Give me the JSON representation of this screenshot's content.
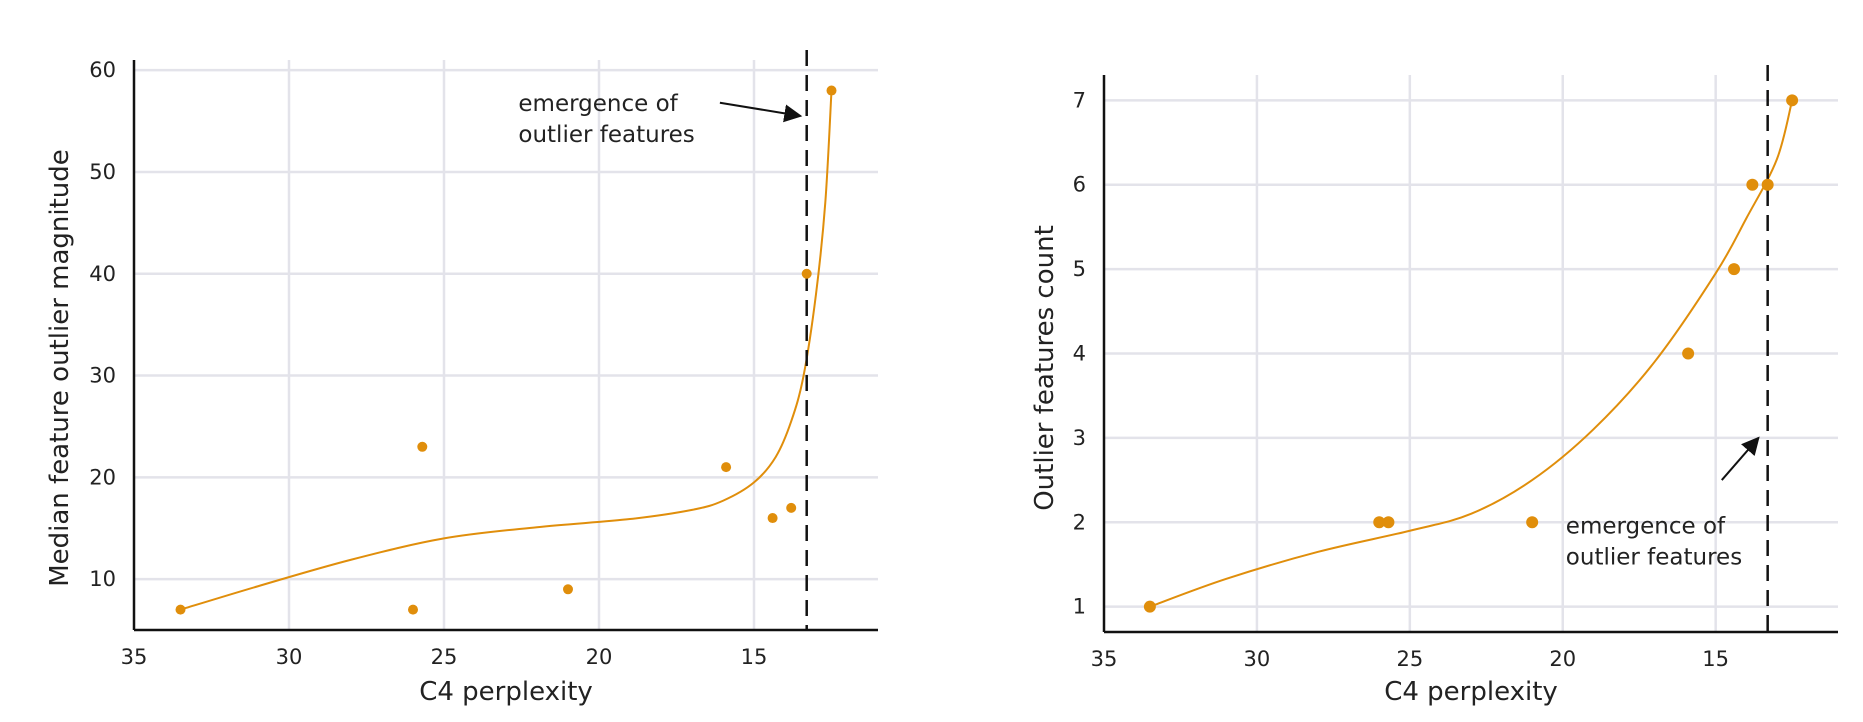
{
  "chart_data": [
    {
      "type": "scatter",
      "xlabel": "C4 perplexity",
      "ylabel": "Median feature outlier magnitude",
      "xlim": [
        35,
        11
      ],
      "ylim": [
        5,
        61
      ],
      "xticks": [
        35,
        30,
        25,
        20,
        15
      ],
      "yticks": [
        10,
        20,
        30,
        40,
        50,
        60
      ],
      "x_axis_reversed": true,
      "grid": true,
      "marker_color": "#E08E0B",
      "fit_color": "#E08E0B",
      "points": [
        {
          "x": 33.5,
          "y": 7
        },
        {
          "x": 26.0,
          "y": 7
        },
        {
          "x": 25.7,
          "y": 23
        },
        {
          "x": 21.0,
          "y": 9
        },
        {
          "x": 15.9,
          "y": 21
        },
        {
          "x": 14.4,
          "y": 16
        },
        {
          "x": 13.8,
          "y": 17
        },
        {
          "x": 13.3,
          "y": 40
        },
        {
          "x": 12.5,
          "y": 58
        }
      ],
      "fit_curve": [
        {
          "x": 33.5,
          "y": 7.0
        },
        {
          "x": 31.0,
          "y": 9.3
        },
        {
          "x": 28.0,
          "y": 11.9
        },
        {
          "x": 25.0,
          "y": 14.0
        },
        {
          "x": 22.0,
          "y": 15.1
        },
        {
          "x": 19.0,
          "y": 15.9
        },
        {
          "x": 17.0,
          "y": 16.8
        },
        {
          "x": 16.0,
          "y": 17.7
        },
        {
          "x": 15.0,
          "y": 19.5
        },
        {
          "x": 14.3,
          "y": 22.0
        },
        {
          "x": 13.8,
          "y": 25.5
        },
        {
          "x": 13.4,
          "y": 30.0
        },
        {
          "x": 13.0,
          "y": 38.0
        },
        {
          "x": 12.7,
          "y": 47.0
        },
        {
          "x": 12.5,
          "y": 58.0
        }
      ],
      "threshold_x": 13.3,
      "annotation": {
        "lines": [
          "emergence of",
          "outlier features"
        ],
        "text_at": {
          "x": 22.6,
          "y": 56
        },
        "arrow_from": {
          "x": 16.1,
          "y": 56.8
        },
        "arrow_to": {
          "x": 13.5,
          "y": 55.5
        }
      }
    },
    {
      "type": "scatter",
      "xlabel": "C4 perplexity",
      "ylabel": "Outlier features count",
      "xlim": [
        35,
        11
      ],
      "ylim": [
        0.7,
        7.3
      ],
      "xticks": [
        35,
        30,
        25,
        20,
        15
      ],
      "yticks": [
        1,
        2,
        3,
        4,
        5,
        6,
        7
      ],
      "x_axis_reversed": true,
      "grid": true,
      "marker_color": "#E08E0B",
      "fit_color": "#E08E0B",
      "points": [
        {
          "x": 33.5,
          "y": 1
        },
        {
          "x": 26.0,
          "y": 2
        },
        {
          "x": 25.7,
          "y": 2
        },
        {
          "x": 21.0,
          "y": 2
        },
        {
          "x": 15.9,
          "y": 4
        },
        {
          "x": 14.4,
          "y": 5
        },
        {
          "x": 13.8,
          "y": 6
        },
        {
          "x": 13.3,
          "y": 6
        },
        {
          "x": 12.5,
          "y": 7
        }
      ],
      "fit_curve": [
        {
          "x": 33.5,
          "y": 1.0
        },
        {
          "x": 31.0,
          "y": 1.33
        },
        {
          "x": 28.0,
          "y": 1.65
        },
        {
          "x": 25.0,
          "y": 1.9
        },
        {
          "x": 23.0,
          "y": 2.1
        },
        {
          "x": 21.0,
          "y": 2.5
        },
        {
          "x": 19.0,
          "y": 3.1
        },
        {
          "x": 17.0,
          "y": 3.9
        },
        {
          "x": 15.0,
          "y": 4.95
        },
        {
          "x": 14.0,
          "y": 5.6
        },
        {
          "x": 13.0,
          "y": 6.3
        },
        {
          "x": 12.5,
          "y": 7.0
        }
      ],
      "threshold_x": 13.3,
      "annotation": {
        "lines": [
          "emergence of",
          "outlier features"
        ],
        "text_at": {
          "x": 19.9,
          "y": 1.87
        },
        "arrow_from": {
          "x": 14.8,
          "y": 2.5
        },
        "arrow_to": {
          "x": 13.6,
          "y": 3.0
        }
      }
    }
  ]
}
